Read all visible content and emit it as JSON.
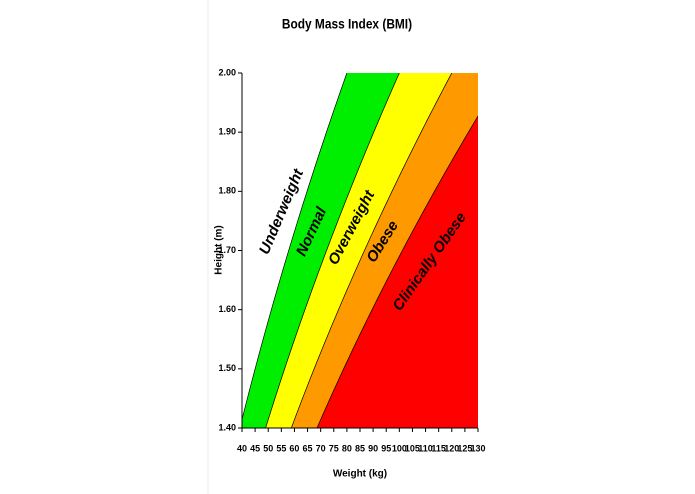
{
  "chart_data": {
    "type": "area",
    "title": "Body Mass Index (BMI)",
    "x_label": "Weight (kg)",
    "y_label": "Height (m)",
    "xlim": [
      40,
      130
    ],
    "ylim": [
      1.4,
      2.0
    ],
    "xticks": [
      40,
      45,
      50,
      55,
      60,
      65,
      70,
      75,
      80,
      85,
      90,
      95,
      100,
      105,
      110,
      115,
      120,
      125,
      130
    ],
    "yticks": [
      {
        "value": 1.4,
        "label": "1.40"
      },
      {
        "value": 1.5,
        "label": "1.50"
      },
      {
        "value": 1.6,
        "label": "1.60"
      },
      {
        "value": 1.7,
        "label": "1.70"
      },
      {
        "value": 1.8,
        "label": "1.80"
      },
      {
        "value": 1.9,
        "label": "1.90"
      },
      {
        "value": 2.0,
        "label": "2.00"
      }
    ],
    "annotation": "Underweight",
    "series": [
      {
        "name": "Normal",
        "color": "#00ee00",
        "value": 20
      },
      {
        "name": "Overweight",
        "color": "#ffff00",
        "value": 25
      },
      {
        "name": "Obese",
        "color": "#ff9900",
        "value": 30
      },
      {
        "name": "Clinically Obese",
        "color": "#ff0000",
        "value": 35
      }
    ]
  }
}
